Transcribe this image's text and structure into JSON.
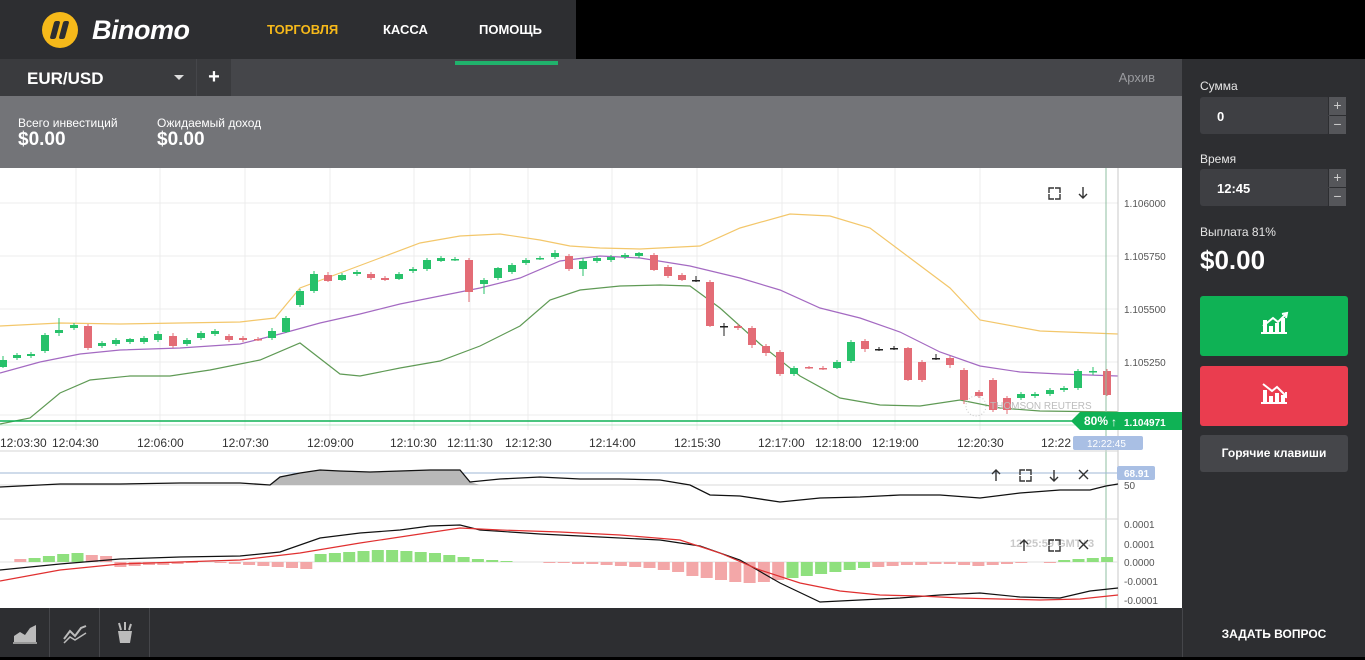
{
  "brand": {
    "name": "Binomo"
  },
  "nav": {
    "trade": "ТОРГОВЛЯ",
    "cashier": "КАССА",
    "help": "ПОМОЩЬ"
  },
  "tabs": {
    "pair": "EUR/USD",
    "add": "+",
    "archive": "Архив"
  },
  "investments": {
    "total_label": "Всего инвестиций",
    "total_value": "$0.00",
    "expected_label": "Ожидаемый доход",
    "expected_value": "$0.00"
  },
  "chart_tools": {
    "live_price": "1.104971",
    "live_payout": "80%",
    "live_arrow": "↑",
    "current_time": "12:22:45",
    "osc_value": "68.91",
    "osc_level": "50",
    "macd_clock": "12:25:59 GMT+3",
    "watermark": "THOMSON REUTERS"
  },
  "price_axis": [
    "1.106000",
    "1.105750",
    "1.105500",
    "1.105250"
  ],
  "time_axis": [
    "12:03:30",
    "12:04:30",
    "12:06:00",
    "12:07:30",
    "12:09:00",
    "12:10:30",
    "12:11:30",
    "12:12:30",
    "12:14:00",
    "12:15:30",
    "12:17:00",
    "12:18:00",
    "12:19:00",
    "12:20:30",
    "12:22"
  ],
  "macd_axis": [
    "0.0001",
    "0.0001",
    "0.0000",
    "-0.0001",
    "-0.0001"
  ],
  "order_panel": {
    "amount_label": "Сумма",
    "amount_value": "0",
    "plus": "+",
    "minus": "−",
    "time_label": "Время",
    "time_value": "12:45",
    "payout_label": "Выплата 81%",
    "payout_value": "$0.00",
    "hotkeys": "Горячие клавиши"
  },
  "bottom": {
    "ask_question": "ЗАДАТЬ ВОПРОС",
    "tools": [
      "area-chart-icon",
      "line-chart-icon",
      "indicators-icon"
    ]
  },
  "colors": {
    "accent_yellow": "#f6b91a",
    "green": "#0fb255",
    "red": "#ea3d4f",
    "panel": "#2d2e31"
  }
}
